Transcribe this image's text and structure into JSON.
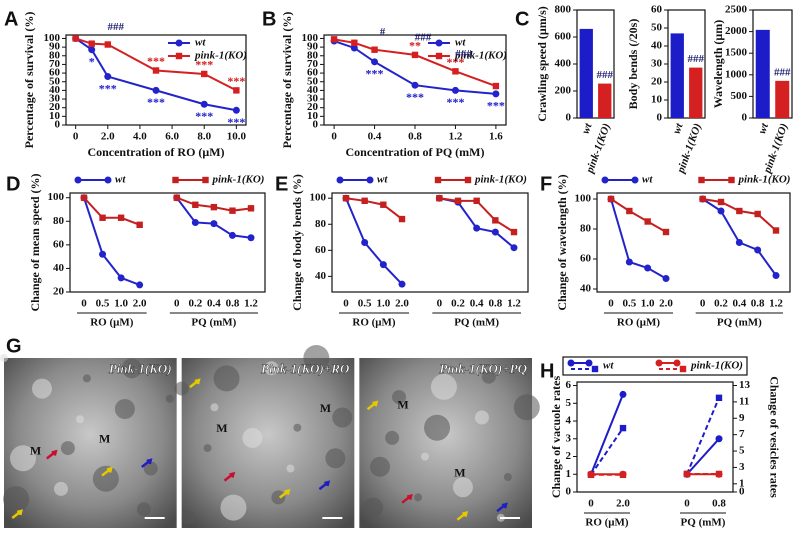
{
  "chart_data": [
    {
      "type": "line",
      "panel": "A",
      "xlabel": "Concentration of RO (μM)",
      "ylabel": "Percentage of survival (%)",
      "x": [
        0,
        1,
        2,
        5,
        8,
        10
      ],
      "xlim": [
        -0.6,
        10.6
      ],
      "xticks": [
        0,
        {
          "value": 2,
          "label": "2.0"
        },
        {
          "value": 4,
          "label": "4.0"
        },
        {
          "value": 6,
          "label": "6.0"
        },
        {
          "value": 8,
          "label": "8.0"
        },
        {
          "value": 10,
          "label": "10.0"
        }
      ],
      "ylim": [
        0,
        104
      ],
      "yticks": [
        0,
        10,
        20,
        30,
        40,
        50,
        60,
        70,
        80,
        90,
        100
      ],
      "series": [
        {
          "name": "wt",
          "color": "#2323cc",
          "values": [
            100,
            87,
            56,
            40,
            24,
            17
          ],
          "significance": [
            null,
            "*",
            "***",
            "***",
            "***",
            "***"
          ]
        },
        {
          "name": "pink-1(KO)",
          "color": "#d42020",
          "values": [
            100,
            94,
            93,
            63,
            59,
            40
          ],
          "significance": [
            null,
            null,
            null,
            "***",
            "***",
            "***"
          ]
        }
      ],
      "comparison": [
        null,
        null,
        "###",
        null,
        null,
        null
      ]
    },
    {
      "type": "line",
      "panel": "B",
      "xlabel": "Concentration of PQ (mM)",
      "ylabel": "Percentage of survival (%)",
      "x": [
        0,
        0.2,
        0.4,
        0.8,
        1.2,
        1.6
      ],
      "xlim": [
        -0.1,
        1.7
      ],
      "xticks": [
        0,
        0.4,
        0.8,
        1.2,
        1.6
      ],
      "ylim": [
        0,
        104
      ],
      "yticks": [
        0,
        10,
        20,
        30,
        40,
        50,
        60,
        70,
        80,
        90,
        100
      ],
      "series": [
        {
          "name": "wt",
          "color": "#2323cc",
          "values": [
            97,
            89,
            73,
            46,
            40,
            36
          ],
          "significance": [
            null,
            null,
            "***",
            "***",
            "***",
            "***"
          ]
        },
        {
          "name": "pink-1(KO)",
          "color": "#d42020",
          "values": [
            99,
            95,
            87,
            81,
            62,
            45
          ],
          "significance": [
            null,
            null,
            null,
            "**",
            "***",
            null
          ]
        }
      ],
      "comparison": [
        null,
        null,
        "#",
        "###",
        "###",
        null
      ]
    },
    {
      "type": "bar",
      "panel": "C",
      "ylabel": "Crawling speed (μm/s)",
      "categories": [
        "wt",
        "pink-1(KO)"
      ],
      "values": [
        660,
        255
      ],
      "colors": [
        "#1c1cc8",
        "#d42020"
      ],
      "ylim": [
        0,
        800
      ],
      "yticks": [
        0,
        200,
        400,
        600,
        800
      ],
      "comparison": [
        null,
        "###"
      ]
    },
    {
      "type": "bar",
      "ylabel": "Body bends (/20s)",
      "categories": [
        "wt",
        "pink-1(KO)"
      ],
      "values": [
        47,
        28
      ],
      "colors": [
        "#1c1cc8",
        "#d42020"
      ],
      "ylim": [
        0,
        60
      ],
      "yticks": [
        0,
        10,
        20,
        30,
        40,
        50,
        60
      ],
      "comparison": [
        null,
        "###"
      ]
    },
    {
      "type": "bar",
      "ylabel": "Wavelength (μm)",
      "categories": [
        "wt",
        "pink-1(KO)"
      ],
      "values": [
        2040,
        860
      ],
      "colors": [
        "#1c1cc8",
        "#d42020"
      ],
      "ylim": [
        0,
        2500
      ],
      "yticks": [
        0,
        500,
        1000,
        1500,
        2000,
        2500
      ],
      "comparison": [
        null,
        "###"
      ]
    },
    {
      "type": "grouped-line",
      "panel": "D",
      "ylabel": "Change of mean speed (%)",
      "groups": [
        {
          "label": "RO (μM)",
          "categories": [
            "0",
            "0.5",
            "1.0",
            "2.0"
          ]
        },
        {
          "label": "PQ (mM)",
          "categories": [
            "0",
            "0.2",
            "0.4",
            "0.8",
            "1.2"
          ]
        }
      ],
      "ylim": [
        20,
        104
      ],
      "yticks": [
        20,
        40,
        60,
        80,
        100
      ],
      "series": [
        {
          "name": "wt",
          "color": "#2323cc",
          "values": [
            [
              100,
              52,
              32,
              26
            ],
            [
              100,
              79,
              78,
              68,
              66
            ]
          ]
        },
        {
          "name": "pink-1(KO)",
          "color": "#c42020",
          "values": [
            [
              100,
              83,
              83,
              77
            ],
            [
              100,
              94,
              92,
              89,
              91
            ]
          ]
        }
      ]
    },
    {
      "type": "grouped-line",
      "panel": "E",
      "ylabel": "Change of body bends (%)",
      "groups": [
        {
          "label": "RO (μM)",
          "categories": [
            "0",
            "0.5",
            "1.0",
            "2.0"
          ]
        },
        {
          "label": "PQ (mM)",
          "categories": [
            "0",
            "0.2",
            "0.4",
            "0.8",
            "1.2"
          ]
        }
      ],
      "ylim": [
        28,
        104
      ],
      "yticks": [
        40,
        60,
        80,
        100
      ],
      "series": [
        {
          "name": "wt",
          "color": "#2323cc",
          "values": [
            [
              100,
              66,
              49,
              34
            ],
            [
              100,
              97,
              77,
              74,
              62
            ]
          ]
        },
        {
          "name": "pink-1(KO)",
          "color": "#c42020",
          "values": [
            [
              100,
              98,
              95,
              84
            ],
            [
              100,
              98,
              98,
              83,
              74
            ]
          ]
        }
      ]
    },
    {
      "type": "grouped-line",
      "panel": "F",
      "ylabel": "Change of wavelength (%)",
      "groups": [
        {
          "label": "RO (μM)",
          "categories": [
            "0",
            "0.5",
            "1.0",
            "2.0"
          ]
        },
        {
          "label": "PQ (mM)",
          "categories": [
            "0",
            "0.2",
            "0.4",
            "0.8",
            "1.2"
          ]
        }
      ],
      "ylim": [
        38,
        104
      ],
      "yticks": [
        40,
        60,
        80,
        100
      ],
      "series": [
        {
          "name": "wt",
          "color": "#2323cc",
          "values": [
            [
              100,
              58,
              54,
              47
            ],
            [
              100,
              92,
              71,
              66,
              49
            ]
          ]
        },
        {
          "name": "pink-1(KO)",
          "color": "#c42020",
          "values": [
            [
              100,
              92,
              85,
              78
            ],
            [
              100,
              98,
              92,
              90,
              79
            ]
          ]
        }
      ]
    },
    {
      "type": "micrograph",
      "panel": "G",
      "images": [
        {
          "label": "Pink-1(KO)",
          "regions": [
            "M",
            "M"
          ]
        },
        {
          "label": "Pink-1(KO)+RO",
          "regions": [
            "M",
            "M"
          ]
        },
        {
          "label": "Pink-1(KO)+PQ",
          "regions": [
            "M",
            "M"
          ]
        }
      ]
    },
    {
      "type": "dual-line",
      "panel": "H",
      "ylabel": "Change of vacuole rates",
      "y2label": "Change of vesicles rates",
      "groups": [
        {
          "label": "RO (μM)",
          "categories": [
            "0",
            "2.0"
          ]
        },
        {
          "label": "PQ (mM)",
          "categories": [
            "0",
            "0.8"
          ]
        }
      ],
      "ylim": [
        0,
        6.2
      ],
      "yticks": [
        0,
        1,
        2,
        3,
        4,
        5,
        6
      ],
      "y2lim": [
        0,
        13.43
      ],
      "y2ticks": [
        0,
        1,
        3,
        5,
        7,
        9,
        11,
        13
      ],
      "series": [
        {
          "name": "wt",
          "color": "#1c1cc8",
          "values": [
            [
              1,
              5.5
            ],
            [
              1,
              3
            ]
          ],
          "y2values": [
            [
              2.1,
              7.8
            ],
            [
              2.2,
              11.5
            ]
          ]
        },
        {
          "name": "pink-1(KO)",
          "color": "#d42020",
          "values": [
            [
              1,
              1
            ],
            [
              1,
              1
            ]
          ],
          "y2values": [
            [
              2.1,
              2.1
            ],
            [
              2.2,
              2.2
            ]
          ]
        }
      ]
    }
  ]
}
